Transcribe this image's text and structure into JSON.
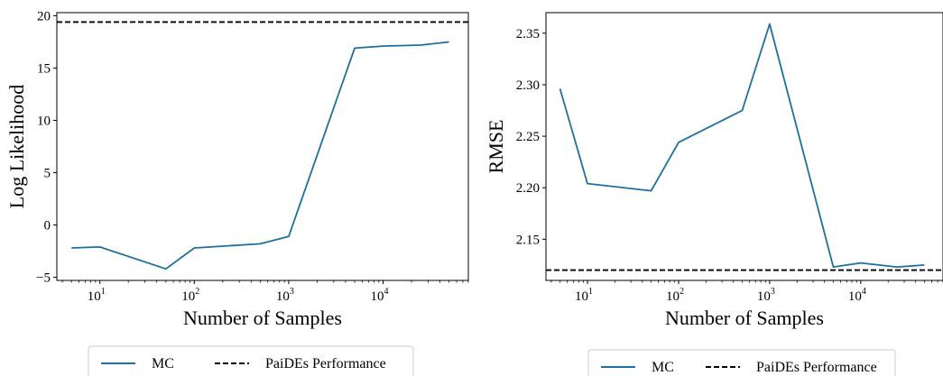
{
  "chart_data": [
    {
      "type": "line",
      "xscale": "log",
      "xlabel": "Number of Samples",
      "ylabel": "Log Likelihood",
      "xlim": [
        3.5,
        80000
      ],
      "ylim": [
        -5.3,
        20.3
      ],
      "xticks": [
        {
          "value": 10,
          "base": "10",
          "exp": "1"
        },
        {
          "value": 100,
          "base": "10",
          "exp": "2"
        },
        {
          "value": 1000,
          "base": "10",
          "exp": "3"
        },
        {
          "value": 10000,
          "base": "10",
          "exp": "4"
        }
      ],
      "yticks": [
        {
          "value": -5,
          "label": "−5"
        },
        {
          "value": 0,
          "label": "0"
        },
        {
          "value": 5,
          "label": "5"
        },
        {
          "value": 10,
          "label": "10"
        },
        {
          "value": 15,
          "label": "15"
        },
        {
          "value": 20,
          "label": "20"
        }
      ],
      "series": [
        {
          "name": "MC",
          "color": "#1f6f9f",
          "style": "solid",
          "x": [
            5,
            10,
            50,
            100,
            500,
            1000,
            5000,
            10000,
            25000,
            50000
          ],
          "y": [
            -2.2,
            -2.1,
            -4.2,
            -2.2,
            -1.8,
            -1.1,
            16.9,
            17.1,
            17.2,
            17.5
          ]
        },
        {
          "name": "PaiDEs Performance",
          "color": "#000000",
          "style": "dashed",
          "hline": 19.4
        }
      ],
      "legend": {
        "placement": "bottom-center",
        "entries": [
          "MC",
          "PaiDEs Performance"
        ]
      },
      "grid": false
    },
    {
      "type": "line",
      "xscale": "log",
      "xlabel": "Number of Samples",
      "ylabel": "RMSE",
      "xlim": [
        3.5,
        80000
      ],
      "ylim": [
        2.11,
        2.37
      ],
      "xticks": [
        {
          "value": 10,
          "base": "10",
          "exp": "1"
        },
        {
          "value": 100,
          "base": "10",
          "exp": "2"
        },
        {
          "value": 1000,
          "base": "10",
          "exp": "3"
        },
        {
          "value": 10000,
          "base": "10",
          "exp": "4"
        }
      ],
      "yticks": [
        {
          "value": 2.15,
          "label": "2.15"
        },
        {
          "value": 2.2,
          "label": "2.20"
        },
        {
          "value": 2.25,
          "label": "2.25"
        },
        {
          "value": 2.3,
          "label": "2.30"
        },
        {
          "value": 2.35,
          "label": "2.35"
        }
      ],
      "series": [
        {
          "name": "MC",
          "color": "#1f6f9f",
          "style": "solid",
          "x": [
            5,
            10,
            50,
            100,
            500,
            1000,
            5000,
            10000,
            25000,
            50000
          ],
          "y": [
            2.296,
            2.204,
            2.197,
            2.244,
            2.275,
            2.359,
            2.123,
            2.127,
            2.123,
            2.125
          ]
        },
        {
          "name": "PaiDEs Performance",
          "color": "#000000",
          "style": "dashed",
          "hline": 2.12
        }
      ],
      "legend": {
        "placement": "bottom-center",
        "entries": [
          "MC",
          "PaiDEs Performance"
        ]
      },
      "grid": false
    }
  ]
}
